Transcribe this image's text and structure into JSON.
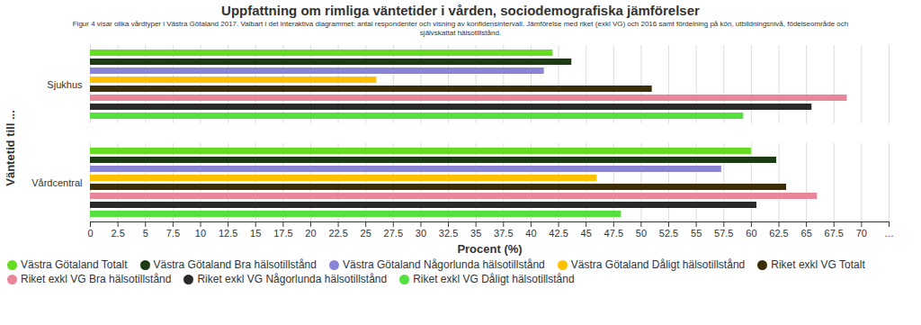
{
  "chart_data": {
    "type": "bar",
    "orientation": "horizontal",
    "title": "Uppfattning om rimliga väntetider i vården, sociodemografiska jämförelser",
    "subtitle": "Figur 4 visar olika vårdtyper i Västra Götaland 2017. Valbart i det interaktiva diagrammet: antal respondenter och visning av konfidensintervall. Jämförelse med riket (exkl VG) och 2016 samt fördelning på kön, utbildningsnivå, födelseområde och självskattat hälsotillstånd.",
    "x_label": "Procent (%)",
    "y_label": "Väntetid till ...",
    "categories": [
      "Sjukhus",
      "Vårdcentral"
    ],
    "series": [
      {
        "name": "Västra Götaland Totalt",
        "color": "#66dd22",
        "values": [
          42,
          60
        ]
      },
      {
        "name": "Västra Götaland Bra hälsotillstånd",
        "color": "#1e3a14",
        "values": [
          43.7,
          62.3
        ]
      },
      {
        "name": "Västra Götaland Någorlunda hälsotillstånd",
        "color": "#8a84d6",
        "values": [
          41.2,
          57.3
        ]
      },
      {
        "name": "Västra Götaland Dåligt hälsotillstånd",
        "color": "#ffc000",
        "values": [
          26,
          46
        ]
      },
      {
        "name": "Riket exkl VG Totalt",
        "color": "#3d2e0a",
        "values": [
          51,
          63.2
        ]
      },
      {
        "name": "Riket exkl VG Bra hälsotillstånd",
        "color": "#e8879a",
        "values": [
          68.7,
          66
        ]
      },
      {
        "name": "Riket exkl VG Någorlunda hälsotillstånd",
        "color": "#2a2a2a",
        "values": [
          65.5,
          60.5
        ]
      },
      {
        "name": "Riket exkl VG Dåligt hälsotillstånd",
        "color": "#55e040",
        "values": [
          59.3,
          48.2
        ]
      }
    ],
    "xlim": [
      0,
      72.5
    ],
    "xticks": [
      0,
      2.5,
      5,
      7.5,
      10,
      12.5,
      15,
      17.5,
      20,
      22.5,
      25,
      27.5,
      30,
      32.5,
      35,
      37.5,
      40,
      42.5,
      45,
      47.5,
      50,
      52.5,
      55,
      57.5,
      60,
      62.5,
      65,
      67.5,
      70,
      {
        "value": 72.5,
        "label": "…"
      }
    ],
    "grid": true,
    "legend": "bottom"
  }
}
